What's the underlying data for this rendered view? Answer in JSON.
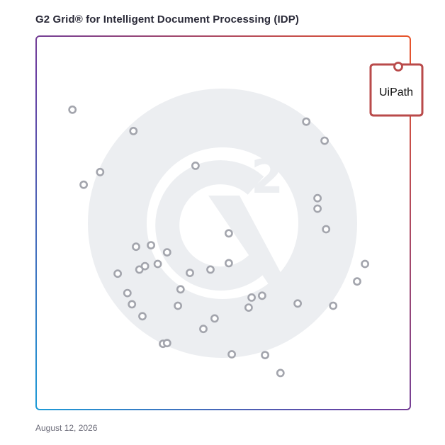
{
  "header": {
    "title": "G2 Grid® for Intelligent Document Processing (IDP)"
  },
  "footer": {
    "date": "August 12, 2026"
  },
  "colors": {
    "frame_top_left": "#6a3ea1",
    "frame_top_right": "#e8542a",
    "frame_bottom_left": "#1e9bd7",
    "frame_bottom_right": "#8a3fa0",
    "dot": "#a3a5ad",
    "watermark": "#eceef1",
    "highlight": "#b94a4a"
  },
  "icons": {
    "watermark": "g2-logo-icon"
  },
  "chart_data": {
    "type": "scatter",
    "title": "G2 Grid® for Intelligent Document Processing (IDP)",
    "xlabel": "",
    "ylabel": "",
    "xlim": [
      0,
      100
    ],
    "ylim": [
      0,
      100
    ],
    "grid": "quadrants",
    "highlight": {
      "label": "UiPath",
      "x": 96,
      "y": 93
    },
    "points": [
      {
        "x": 9.7,
        "y": 80.3
      },
      {
        "x": 26.0,
        "y": 74.6
      },
      {
        "x": 17.1,
        "y": 63.6
      },
      {
        "x": 12.7,
        "y": 60.2
      },
      {
        "x": 42.6,
        "y": 65.3
      },
      {
        "x": 72.2,
        "y": 77.1
      },
      {
        "x": 77.1,
        "y": 72.0
      },
      {
        "x": 75.2,
        "y": 56.6
      },
      {
        "x": 75.2,
        "y": 53.8
      },
      {
        "x": 77.5,
        "y": 48.3
      },
      {
        "x": 51.5,
        "y": 47.2
      },
      {
        "x": 26.7,
        "y": 43.6
      },
      {
        "x": 30.7,
        "y": 44.0
      },
      {
        "x": 35.0,
        "y": 42.1
      },
      {
        "x": 51.5,
        "y": 39.2
      },
      {
        "x": 29.1,
        "y": 38.4
      },
      {
        "x": 32.5,
        "y": 39.0
      },
      {
        "x": 27.6,
        "y": 37.5
      },
      {
        "x": 21.8,
        "y": 36.4
      },
      {
        "x": 41.1,
        "y": 36.6
      },
      {
        "x": 46.6,
        "y": 37.5
      },
      {
        "x": 87.9,
        "y": 39.0
      },
      {
        "x": 85.8,
        "y": 34.3
      },
      {
        "x": 24.4,
        "y": 31.2
      },
      {
        "x": 38.6,
        "y": 32.2
      },
      {
        "x": 60.4,
        "y": 30.5
      },
      {
        "x": 57.6,
        "y": 30.0
      },
      {
        "x": 25.6,
        "y": 28.2
      },
      {
        "x": 37.9,
        "y": 27.8
      },
      {
        "x": 69.9,
        "y": 28.4
      },
      {
        "x": 79.4,
        "y": 27.8
      },
      {
        "x": 56.8,
        "y": 27.3
      },
      {
        "x": 28.4,
        "y": 25.0
      },
      {
        "x": 47.7,
        "y": 24.4
      },
      {
        "x": 44.7,
        "y": 21.6
      },
      {
        "x": 33.9,
        "y": 17.6
      },
      {
        "x": 35.0,
        "y": 17.8
      },
      {
        "x": 52.3,
        "y": 14.8
      },
      {
        "x": 61.2,
        "y": 14.6
      },
      {
        "x": 65.3,
        "y": 9.8
      }
    ]
  }
}
